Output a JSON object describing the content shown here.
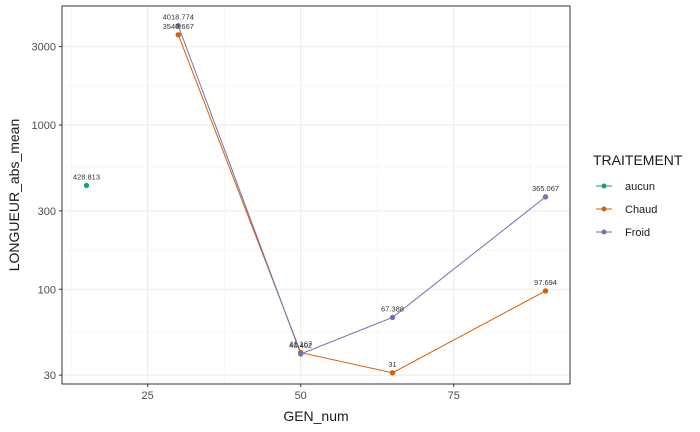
{
  "chart_data": {
    "type": "line",
    "xlabel": "GEN_num",
    "ylabel": "LONGUEUR_abs_mean",
    "xlim": [
      11,
      94
    ],
    "ylim": [
      26.5,
      5300
    ],
    "yscale": "log10",
    "x_ticks": [
      25,
      50,
      75
    ],
    "y_ticks": [
      30,
      100,
      300,
      1000,
      3000
    ],
    "grid": true,
    "legend_title": "TRAITEMENT",
    "legend_position": "right",
    "series": [
      {
        "name": "aucun",
        "color": "#1B9E77",
        "points": [
          {
            "x": 15,
            "y": 428.813,
            "label": "428.813"
          }
        ]
      },
      {
        "name": "Chaud",
        "color": "#D95F02",
        "points": [
          {
            "x": 30,
            "y": 3540.667,
            "label": "3540.667"
          },
          {
            "x": 50,
            "y": 41.167,
            "label": "41.167"
          },
          {
            "x": 65,
            "y": 31,
            "label": "31"
          },
          {
            "x": 90,
            "y": 97.694,
            "label": "97.694"
          }
        ]
      },
      {
        "name": "Froid",
        "color": "#7570B3",
        "points": [
          {
            "x": 30,
            "y": 4018.774,
            "label": "4018.774"
          },
          {
            "x": 50,
            "y": 40.402,
            "label": "40.402"
          },
          {
            "x": 65,
            "y": 67.388,
            "label": "67.388"
          },
          {
            "x": 90,
            "y": 365.067,
            "label": "365.067"
          }
        ]
      }
    ]
  }
}
